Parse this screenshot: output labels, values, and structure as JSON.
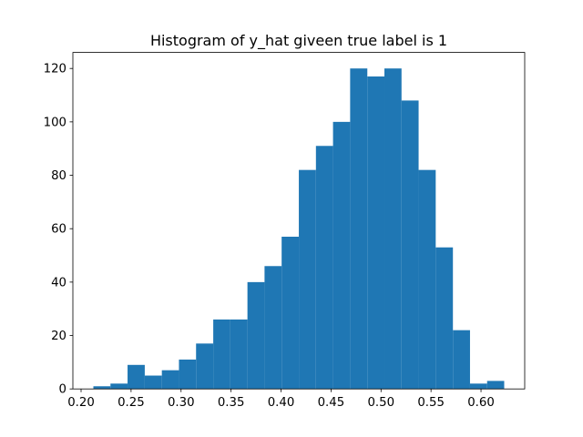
{
  "chart_data": {
    "type": "histogram",
    "title": "Histogram of y_hat giveen true label is 1",
    "bins": [
      0.2123,
      0.2294,
      0.2465,
      0.2637,
      0.2808,
      0.2979,
      0.315,
      0.3322,
      0.3493,
      0.3664,
      0.3835,
      0.4006,
      0.4178,
      0.4349,
      0.452,
      0.4691,
      0.4863,
      0.5034,
      0.5205,
      0.5376,
      0.5547,
      0.5719,
      0.589,
      0.6061,
      0.6232
    ],
    "values": [
      1,
      2,
      9,
      5,
      7,
      11,
      17,
      26,
      26,
      40,
      46,
      57,
      82,
      91,
      100,
      120,
      117,
      120,
      108,
      82,
      53,
      22,
      2,
      3
    ],
    "color": "#1f77b4",
    "xlim": [
      0.1918,
      0.6437
    ],
    "xticks": [
      {
        "value": 0.2,
        "label": "0.20"
      },
      {
        "value": 0.25,
        "label": "0.25"
      },
      {
        "value": 0.3,
        "label": "0.30"
      },
      {
        "value": 0.35,
        "label": "0.35"
      },
      {
        "value": 0.4,
        "label": "0.40"
      },
      {
        "value": 0.45,
        "label": "0.45"
      },
      {
        "value": 0.5,
        "label": "0.50"
      },
      {
        "value": 0.55,
        "label": "0.55"
      },
      {
        "value": 0.6,
        "label": "0.60"
      }
    ],
    "ylim": [
      0,
      126
    ],
    "yticks": [
      0,
      20,
      40,
      60,
      80,
      100,
      120
    ],
    "grid": false
  }
}
